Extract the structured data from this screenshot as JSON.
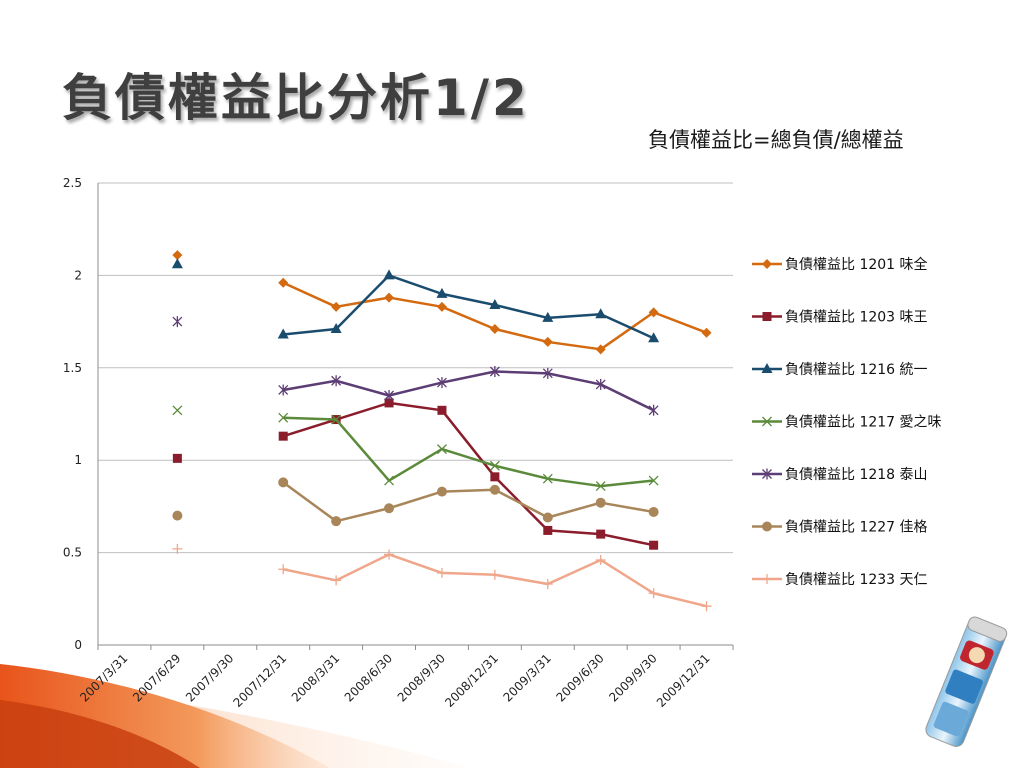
{
  "slide": {
    "title": "負債權益比分析1/2",
    "formula": "負債權益比=總負債/總權益"
  },
  "colors": {
    "title_text": "#3f3f3f",
    "gridline": "#bfbfbf",
    "accent_orange": "#e8641b"
  },
  "chart_data": {
    "type": "line",
    "categories": [
      "2007/3/31",
      "2007/6/29",
      "2007/9/30",
      "2007/12/31",
      "2008/3/31",
      "2008/6/30",
      "2008/9/30",
      "2008/12/31",
      "2009/3/31",
      "2009/6/30",
      "2009/9/30",
      "2009/12/31"
    ],
    "ylim": [
      0,
      2.5
    ],
    "yticks": [
      "0",
      "0.5",
      "1",
      "1.5",
      "2",
      "2.5"
    ],
    "grid": true,
    "legend_position": "right",
    "series": [
      {
        "name": "負債權益比 1201 味全",
        "color": "#d46a0f",
        "marker": "diamond",
        "values": [
          null,
          2.11,
          null,
          1.96,
          1.83,
          1.88,
          1.83,
          1.71,
          1.64,
          1.6,
          1.8,
          1.69
        ]
      },
      {
        "name": "負債權益比 1203 味王",
        "color": "#8b1c2c",
        "marker": "square",
        "values": [
          null,
          1.01,
          null,
          1.13,
          1.22,
          1.31,
          1.27,
          0.91,
          0.62,
          0.6,
          0.54,
          null
        ]
      },
      {
        "name": "負債權益比 1216 統一",
        "color": "#1a4c6e",
        "marker": "triangle",
        "values": [
          null,
          2.06,
          null,
          1.68,
          1.71,
          2.0,
          1.9,
          1.84,
          1.77,
          1.79,
          1.66,
          null
        ]
      },
      {
        "name": "負債權益比 1217 愛之味",
        "color": "#5a8a3a",
        "marker": "x",
        "values": [
          null,
          1.27,
          null,
          1.23,
          1.22,
          0.89,
          1.06,
          0.97,
          0.9,
          0.86,
          0.89,
          null
        ]
      },
      {
        "name": "負債權益比 1218 泰山",
        "color": "#5c3d74",
        "marker": "star",
        "values": [
          null,
          1.75,
          null,
          1.38,
          1.43,
          1.35,
          1.42,
          1.48,
          1.47,
          1.41,
          1.27,
          null
        ]
      },
      {
        "name": "負債權益比 1227 佳格",
        "color": "#a8865a",
        "marker": "circle",
        "values": [
          null,
          0.7,
          null,
          0.88,
          0.67,
          0.74,
          0.83,
          0.84,
          0.69,
          0.77,
          0.72,
          null
        ]
      },
      {
        "name": "負債權益比 1233 天仁",
        "color": "#f0a68a",
        "marker": "plus",
        "values": [
          null,
          0.52,
          null,
          0.41,
          0.35,
          0.49,
          0.39,
          0.38,
          0.33,
          0.46,
          0.28,
          0.21
        ]
      }
    ]
  },
  "decorations": {
    "product_image_icon": "cereal-can-icon"
  }
}
